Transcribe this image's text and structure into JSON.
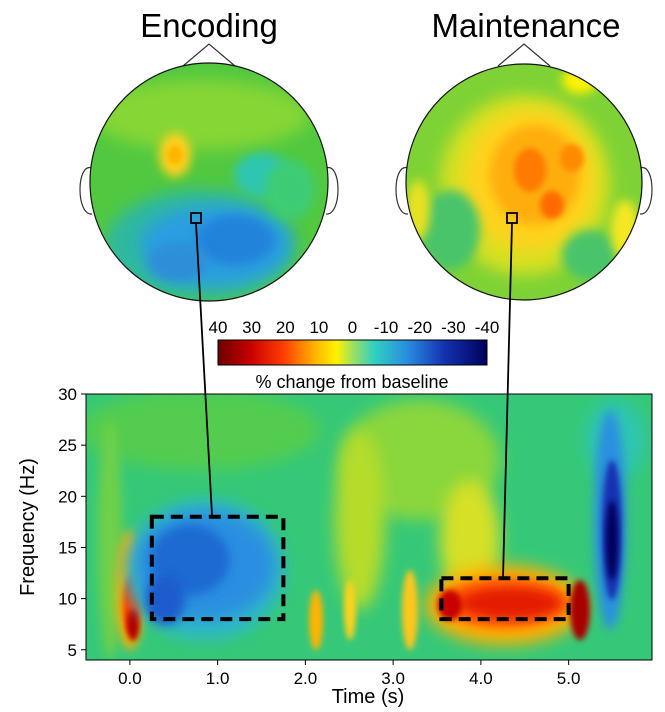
{
  "chart_data": {
    "type": "heatmap",
    "topomaps": [
      {
        "title": "Encoding",
        "description_regions": [
          {
            "label": "frontal-left positive blob",
            "value": 15
          },
          {
            "label": "central-posterior negative region",
            "value": -20
          }
        ]
      },
      {
        "title": "Maintenance",
        "description_regions": [
          {
            "label": "central positive region",
            "value": 25
          },
          {
            "label": "peripheral near-zero",
            "value": 5
          }
        ]
      }
    ],
    "colorbar": {
      "label": "% change from baseline",
      "ticks": [
        "40",
        "30",
        "20",
        "10",
        "0",
        "-10",
        "-20",
        "-30",
        "-40"
      ],
      "range": [
        40,
        -40
      ]
    },
    "spectrogram": {
      "xlabel": "Time (s)",
      "ylabel": "Frequency (Hz)",
      "xlim": [
        -0.5,
        5.95
      ],
      "ylim": [
        4,
        30
      ],
      "xticks": [
        "0.0",
        "1.0",
        "2.0",
        "3.0",
        "4.0",
        "5.0"
      ],
      "yticks": [
        "5",
        "10",
        "15",
        "20",
        "25",
        "30"
      ],
      "features": [
        {
          "name": "onset burst",
          "t": 0.08,
          "f": 8.5,
          "value": 40
        },
        {
          "name": "encoding desynchronization",
          "t": [
            0.25,
            1.75
          ],
          "f": [
            8,
            18
          ],
          "value": -22
        },
        {
          "name": "maintenance synchronization",
          "t": [
            3.55,
            5.0
          ],
          "f": [
            8,
            12
          ],
          "value": 28
        },
        {
          "name": "offset desynchronization",
          "t": 5.5,
          "f": 13,
          "value": -35
        }
      ],
      "windows": [
        {
          "label": "Encoding",
          "t": [
            0.25,
            1.75
          ],
          "f": [
            8,
            18
          ]
        },
        {
          "label": "Maintenance",
          "t": [
            3.55,
            5.0
          ],
          "f": [
            8,
            12
          ]
        }
      ]
    }
  }
}
